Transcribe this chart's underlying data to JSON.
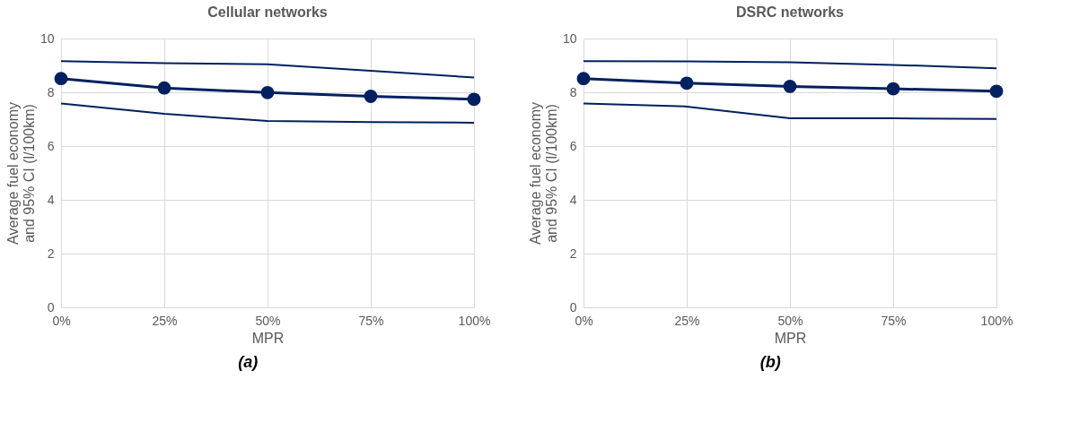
{
  "chart_data": [
    {
      "type": "line",
      "title": "Cellular networks",
      "xlabel": "MPR",
      "ylabel": "Average fuel economy\nand 95% CI (l/100km)",
      "categories": [
        "0%",
        "25%",
        "50%",
        "75%",
        "100%"
      ],
      "ylim": [
        0,
        10
      ],
      "yticks": [
        0,
        2,
        4,
        6,
        8,
        10
      ],
      "grid": true,
      "line_style": "solid",
      "annotations": [
        "(a)"
      ],
      "series": [
        {
          "color": "#002060",
          "marker": "none",
          "values": [
            9.16,
            9.08,
            9.04,
            8.8,
            8.55
          ]
        },
        {
          "color": "#002060",
          "marker": "circle",
          "values": [
            8.51,
            8.16,
            7.99,
            7.85,
            7.74
          ]
        },
        {
          "color": "#002060",
          "marker": "none",
          "values": [
            7.58,
            7.2,
            6.93,
            6.89,
            6.87
          ]
        }
      ]
    },
    {
      "type": "line",
      "title": "DSRC networks",
      "xlabel": "MPR",
      "ylabel": "Average fuel economy\nand 95% CI (l/100km)",
      "categories": [
        "0%",
        "25%",
        "50%",
        "75%",
        "100%"
      ],
      "ylim": [
        0,
        10
      ],
      "yticks": [
        0,
        2,
        4,
        6,
        8,
        10
      ],
      "grid": true,
      "line_style": "solid",
      "annotations": [
        "(b)"
      ],
      "series": [
        {
          "color": "#002060",
          "marker": "none",
          "values": [
            9.16,
            9.15,
            9.12,
            9.02,
            8.89
          ]
        },
        {
          "color": "#002060",
          "marker": "circle",
          "values": [
            8.51,
            8.34,
            8.22,
            8.13,
            8.04
          ]
        },
        {
          "color": "#002060",
          "marker": "none",
          "values": [
            7.58,
            7.47,
            7.03,
            7.03,
            7.01
          ]
        }
      ]
    }
  ]
}
